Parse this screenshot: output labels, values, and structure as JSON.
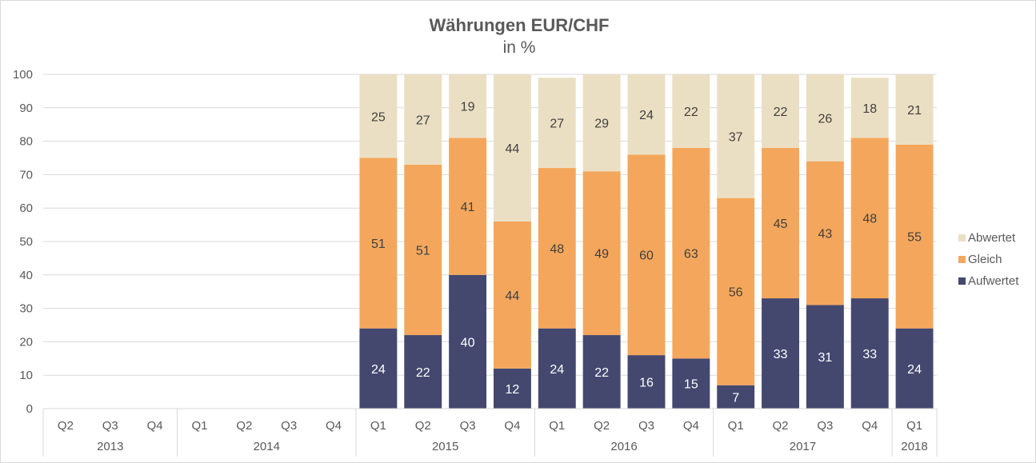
{
  "chart_data": {
    "type": "bar",
    "stacked": true,
    "title": "Währungen EUR/CHF",
    "subtitle": "in %",
    "ylim": [
      0,
      100
    ],
    "yticks": [
      0,
      10,
      20,
      30,
      40,
      50,
      60,
      70,
      80,
      90,
      100
    ],
    "grid": true,
    "legend_position": "right",
    "categories": [
      "Q2",
      "Q3",
      "Q4",
      "Q1",
      "Q2",
      "Q3",
      "Q4",
      "Q1",
      "Q2",
      "Q3",
      "Q4",
      "Q1",
      "Q2",
      "Q3",
      "Q4",
      "Q1",
      "Q2",
      "Q3",
      "Q4",
      "Q1"
    ],
    "year_groups": [
      {
        "label": "2013",
        "count": 3
      },
      {
        "label": "2014",
        "count": 4
      },
      {
        "label": "2015",
        "count": 4
      },
      {
        "label": "2016",
        "count": 4
      },
      {
        "label": "2017",
        "count": 4
      },
      {
        "label": "2018",
        "count": 1
      }
    ],
    "series": [
      {
        "name": "Aufwertet",
        "color": "#44486f",
        "label_color": "#ffffff",
        "values": [
          null,
          null,
          null,
          null,
          null,
          null,
          null,
          24,
          22,
          40,
          12,
          24,
          22,
          16,
          15,
          7,
          33,
          31,
          33,
          24
        ]
      },
      {
        "name": "Gleich",
        "color": "#f4a75c",
        "label_color": "#404040",
        "values": [
          null,
          null,
          null,
          null,
          null,
          null,
          null,
          51,
          51,
          41,
          44,
          48,
          49,
          60,
          63,
          56,
          45,
          43,
          48,
          55
        ]
      },
      {
        "name": "Abwertet",
        "color": "#ebdfc3",
        "label_color": "#404040",
        "values": [
          null,
          null,
          null,
          null,
          null,
          null,
          null,
          25,
          27,
          19,
          44,
          27,
          29,
          24,
          22,
          37,
          22,
          26,
          18,
          21
        ]
      }
    ]
  }
}
